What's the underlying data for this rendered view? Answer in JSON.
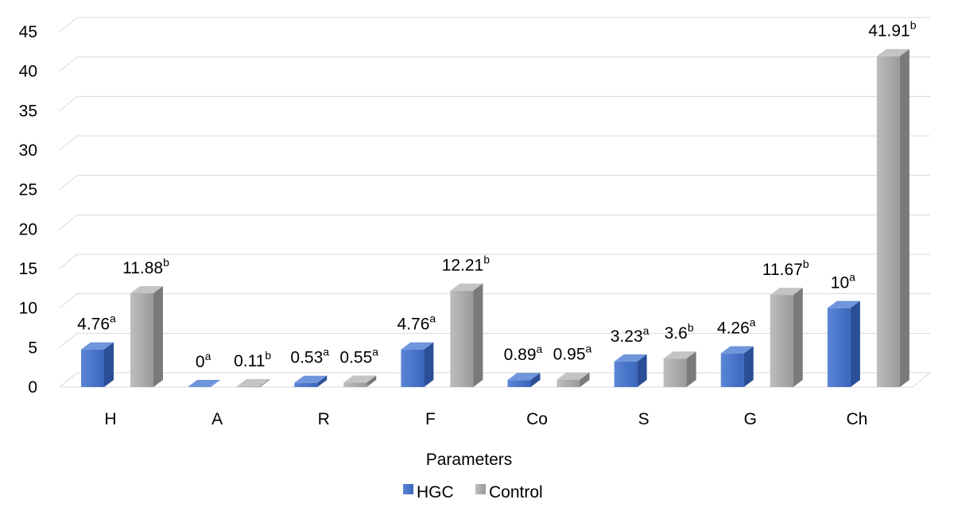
{
  "chart_data": {
    "type": "bar",
    "title": "",
    "xlabel": "Parameters",
    "ylabel": "",
    "ylim": [
      0,
      45
    ],
    "yticks": [
      0,
      5,
      10,
      15,
      20,
      25,
      30,
      35,
      40,
      45
    ],
    "grid": true,
    "legend_position": "bottom",
    "categories": [
      "H",
      "A",
      "R",
      "F",
      "Co",
      "S",
      "G",
      "Ch"
    ],
    "series": [
      {
        "name": "HGC",
        "color": "#4472C4",
        "values": [
          4.76,
          0,
          0.53,
          4.76,
          0.89,
          3.23,
          4.26,
          10
        ],
        "labels": [
          "4.76",
          "0",
          "0.53",
          "4.76",
          "0.89",
          "3.23",
          "4.26",
          "10"
        ],
        "letters": [
          "a",
          "a",
          "a",
          "a",
          "a",
          "a",
          "a",
          "a"
        ]
      },
      {
        "name": "Control",
        "color": "#A5A5A5",
        "values": [
          11.88,
          0.11,
          0.55,
          12.21,
          0.95,
          3.6,
          11.67,
          41.91
        ],
        "labels": [
          "11.88",
          "0.11",
          "0.55",
          "12.21",
          "0.95",
          "3.6",
          "11.67",
          "41.91"
        ],
        "letters": [
          "b",
          "b",
          "a",
          "b",
          "a",
          "b",
          "b",
          "b"
        ]
      }
    ]
  }
}
